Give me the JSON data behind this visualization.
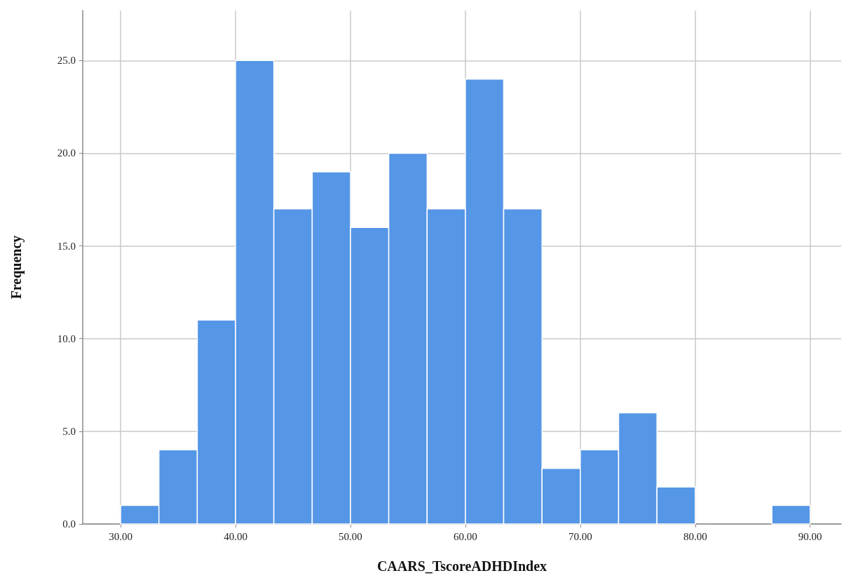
{
  "chart_data": {
    "type": "histogram",
    "xlabel": "CAARS_TscoreADHDIndex",
    "ylabel": "Frequency",
    "color": "#5596e6",
    "bins": [
      30,
      33.33,
      36.67,
      40,
      43.33,
      46.67,
      50,
      53.33,
      56.67,
      60,
      63.33,
      66.67,
      70,
      73.33,
      76.67,
      80,
      83.33,
      86.67,
      90
    ],
    "values": [
      1,
      4,
      11,
      25,
      17,
      19,
      16,
      20,
      17,
      24,
      17,
      3,
      4,
      6,
      2,
      0,
      0,
      1
    ],
    "xlim": [
      26.7,
      92.7
    ],
    "ylim": [
      0,
      27.7
    ],
    "xticks": [
      {
        "value": 30,
        "label": "30.00"
      },
      {
        "value": 40,
        "label": "40.00"
      },
      {
        "value": 50,
        "label": "50.00"
      },
      {
        "value": 60,
        "label": "60.00"
      },
      {
        "value": 70,
        "label": "70.00"
      },
      {
        "value": 80,
        "label": "80.00"
      },
      {
        "value": 90,
        "label": "90.00"
      }
    ],
    "yticks": [
      {
        "value": 0,
        "label": "0.0"
      },
      {
        "value": 5,
        "label": "5.0"
      },
      {
        "value": 10,
        "label": "10.0"
      },
      {
        "value": 15,
        "label": "15.0"
      },
      {
        "value": 20,
        "label": "20.0"
      },
      {
        "value": 25,
        "label": "25.0"
      }
    ],
    "grid": true
  }
}
